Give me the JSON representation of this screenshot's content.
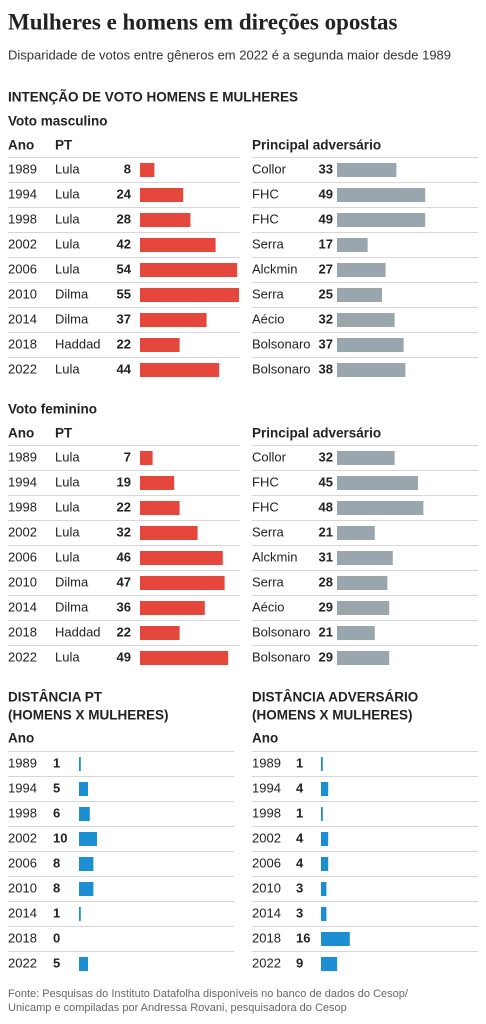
{
  "title": "Mulheres e homens em direções opostas",
  "subtitle": "Disparidade de votos entre gêneros em 2022 é a segunda maior desde 1989",
  "section_title": "INTENÇÃO DE VOTO HOMENS E MULHERES",
  "colors": {
    "pt": "#e5473d",
    "opp": "#99a6ae",
    "diff": "#1b8fd2"
  },
  "vote_panels": [
    {
      "title": "Voto masculino",
      "headers": [
        "Ano",
        "PT",
        "Principal adversário"
      ],
      "years": [
        "1989",
        "1994",
        "1998",
        "2002",
        "2006",
        "2010",
        "2014",
        "2018",
        "2022"
      ],
      "pt_names": [
        "Lula",
        "Lula",
        "Lula",
        "Lula",
        "Lula",
        "Dilma",
        "Dilma",
        "Haddad",
        "Lula"
      ],
      "pt_values": [
        8,
        24,
        28,
        42,
        54,
        55,
        37,
        22,
        44
      ],
      "opp_names": [
        "Collor",
        "FHC",
        "FHC",
        "Serra",
        "Alckmin",
        "Serra",
        "Aécio",
        "Bolsonaro",
        "Bolsonaro"
      ],
      "opp_values": [
        33,
        49,
        49,
        17,
        27,
        25,
        32,
        37,
        38
      ]
    },
    {
      "title": "Voto feminino",
      "headers": [
        "Ano",
        "PT",
        "Principal adversário"
      ],
      "years": [
        "1989",
        "1994",
        "1998",
        "2002",
        "2006",
        "2010",
        "2014",
        "2018",
        "2022"
      ],
      "pt_names": [
        "Lula",
        "Lula",
        "Lula",
        "Lula",
        "Lula",
        "Dilma",
        "Dilma",
        "Haddad",
        "Lula"
      ],
      "pt_values": [
        7,
        19,
        22,
        32,
        46,
        47,
        36,
        22,
        49
      ],
      "opp_names": [
        "Collor",
        "FHC",
        "FHC",
        "Serra",
        "Alckmin",
        "Serra",
        "Aécio",
        "Bolsonaro",
        "Bolsonaro"
      ],
      "opp_values": [
        32,
        45,
        48,
        21,
        31,
        28,
        29,
        21,
        29
      ]
    }
  ],
  "diff_panels": [
    {
      "title_lines": [
        "DISTÂNCIA PT",
        "(HOMENS X MULHERES)"
      ],
      "header": "Ano",
      "years": [
        "1989",
        "1994",
        "1998",
        "2002",
        "2006",
        "2010",
        "2014",
        "2018",
        "2022"
      ],
      "values": [
        1,
        5,
        6,
        10,
        8,
        8,
        1,
        0,
        5
      ]
    },
    {
      "title_lines": [
        "DISTÂNCIA ADVERSÁRIO",
        "(HOMENS X MULHERES)"
      ],
      "header": "Ano",
      "years": [
        "1989",
        "1994",
        "1998",
        "2002",
        "2006",
        "2010",
        "2014",
        "2018",
        "2022"
      ],
      "values": [
        1,
        4,
        1,
        4,
        4,
        3,
        3,
        16,
        9
      ]
    }
  ],
  "source_lines": [
    "Fonte: Pesquisas do Instituto Datafolha disponíveis no banco de dados do Cesop/",
    "Unicamp e compiladas por Andressa Rovani, pesquisadora do Cesop"
  ]
}
